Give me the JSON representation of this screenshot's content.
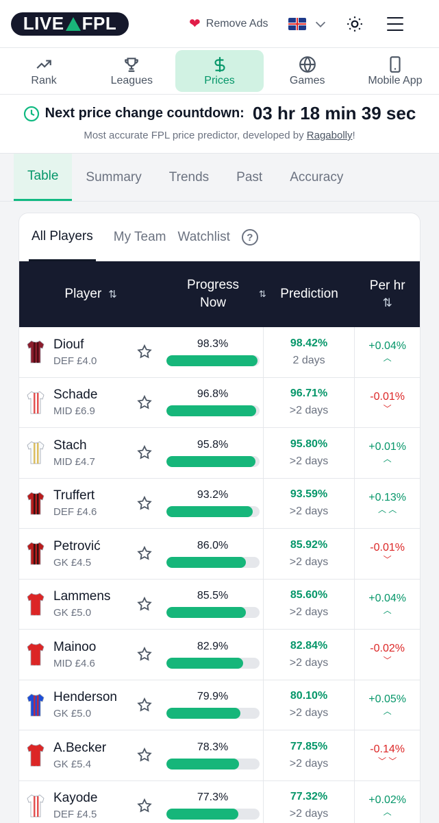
{
  "header": {
    "logo_text": "LIVEFPL",
    "remove_ads_label": "Remove Ads"
  },
  "nav": [
    {
      "label": "Rank",
      "icon": "trending-up-icon",
      "active": false
    },
    {
      "label": "Leagues",
      "icon": "trophy-icon",
      "active": false
    },
    {
      "label": "Prices",
      "icon": "dollar-icon",
      "active": true
    },
    {
      "label": "Games",
      "icon": "globe-icon",
      "active": false
    },
    {
      "label": "Mobile App",
      "icon": "phone-icon",
      "active": false
    }
  ],
  "countdown": {
    "label": "Next price change countdown:",
    "value": "03 hr 18 min 39 sec",
    "sub_prefix": "Most accurate FPL price predictor, developed by",
    "sub_link": "Ragabolly",
    "sub_suffix": "!"
  },
  "tabs": [
    "Table",
    "Summary",
    "Trends",
    "Past",
    "Accuracy"
  ],
  "subtabs": [
    "All Players",
    "My Team",
    "Watchlist"
  ],
  "table": {
    "headers": {
      "player": "Player",
      "progress_line1": "Progress",
      "progress_line2": "Now",
      "prediction": "Prediction",
      "perhr": "Per hr"
    },
    "rows": [
      {
        "name": "Diouf",
        "meta": "DEF £4.0",
        "progress": "98.3%",
        "progress_value": 98.3,
        "prediction": "98.42%",
        "time": "2 days",
        "perhr": "+0.04%",
        "dir": "up",
        "arrows": "^",
        "shirt": "#8b1d2c",
        "stripe": "#3b0a10"
      },
      {
        "name": "Schade",
        "meta": "MID £6.9",
        "progress": "96.8%",
        "progress_value": 96.8,
        "prediction": "96.71%",
        "time": ">2 days",
        "perhr": "-0.01%",
        "dir": "down",
        "arrows": "v",
        "shirt": "#ffffff",
        "stripe": "#dc2626"
      },
      {
        "name": "Stach",
        "meta": "MID £4.7",
        "progress": "95.8%",
        "progress_value": 95.8,
        "prediction": "95.80%",
        "time": ">2 days",
        "perhr": "+0.01%",
        "dir": "up",
        "arrows": "^",
        "shirt": "#f8fafc",
        "stripe": "#d4af37"
      },
      {
        "name": "Truffert",
        "meta": "DEF £4.6",
        "progress": "93.2%",
        "progress_value": 93.2,
        "prediction": "93.59%",
        "time": ">2 days",
        "perhr": "+0.13%",
        "dir": "up",
        "arrows": "^ ^",
        "shirt": "#b91c1c",
        "stripe": "#111111"
      },
      {
        "name": "Petrović",
        "meta": "GK £4.5",
        "progress": "86.0%",
        "progress_value": 86.0,
        "prediction": "85.92%",
        "time": ">2 days",
        "perhr": "-0.01%",
        "dir": "down",
        "arrows": "v",
        "shirt": "#b91c1c",
        "stripe": "#111111"
      },
      {
        "name": "Lammens",
        "meta": "GK £5.0",
        "progress": "85.5%",
        "progress_value": 85.5,
        "prediction": "85.60%",
        "time": ">2 days",
        "perhr": "+0.04%",
        "dir": "up",
        "arrows": "^",
        "shirt": "#dc2626",
        "stripe": "#dc2626"
      },
      {
        "name": "Mainoo",
        "meta": "MID £4.6",
        "progress": "82.9%",
        "progress_value": 82.9,
        "prediction": "82.84%",
        "time": ">2 days",
        "perhr": "-0.02%",
        "dir": "down",
        "arrows": "v",
        "shirt": "#dc2626",
        "stripe": "#dc2626"
      },
      {
        "name": "Henderson",
        "meta": "GK £5.0",
        "progress": "79.9%",
        "progress_value": 79.9,
        "prediction": "80.10%",
        "time": ">2 days",
        "perhr": "+0.05%",
        "dir": "up",
        "arrows": "^",
        "shirt": "#1d4ed8",
        "stripe": "#dc2626"
      },
      {
        "name": "A.Becker",
        "meta": "GK £5.4",
        "progress": "78.3%",
        "progress_value": 78.3,
        "prediction": "77.85%",
        "time": ">2 days",
        "perhr": "-0.14%",
        "dir": "down",
        "arrows": "v v",
        "shirt": "#dc2626",
        "stripe": "#dc2626"
      },
      {
        "name": "Kayode",
        "meta": "DEF £4.5",
        "progress": "77.3%",
        "progress_value": 77.3,
        "prediction": "77.32%",
        "time": ">2 days",
        "perhr": "+0.02%",
        "dir": "up",
        "arrows": "^",
        "shirt": "#ffffff",
        "stripe": "#dc2626"
      }
    ]
  },
  "colors": {
    "accent": "#059669",
    "header_dark": "#161b2e",
    "bar": "#16b67a",
    "negative": "#dc2626"
  }
}
